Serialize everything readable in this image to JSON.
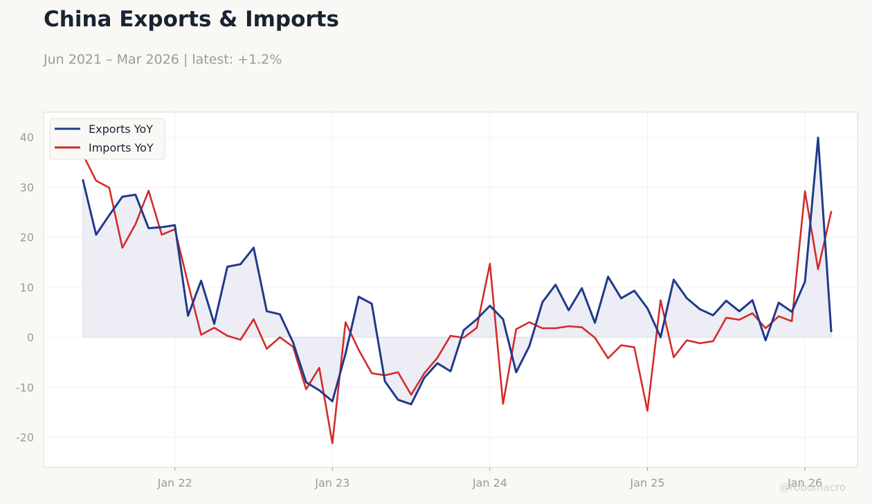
{
  "header": {
    "title": "China Exports & Imports",
    "subtitle": "Jun 2021 – Mar 2026 | latest: +1.2%"
  },
  "watermark": "@robomacro",
  "colors": {
    "exports": "#1f3a8a",
    "imports": "#d42a2a",
    "fill": "#e9eaf3",
    "grid": "#f0f0f0",
    "frame": "#dedad0"
  },
  "chart_data": {
    "type": "line",
    "x_start": "2021-06",
    "x_interval": "month",
    "xlim": [
      "2021-03",
      "2026-05"
    ],
    "ylim": [
      -26,
      45
    ],
    "x_ticks": [
      {
        "date": "2022-01",
        "label": "Jan 22"
      },
      {
        "date": "2023-01",
        "label": "Jan 23"
      },
      {
        "date": "2024-01",
        "label": "Jan 24"
      },
      {
        "date": "2025-01",
        "label": "Jan 25"
      },
      {
        "date": "2026-01",
        "label": "Jan 26"
      }
    ],
    "y_ticks": [
      -20,
      -10,
      0,
      10,
      20,
      30,
      40
    ],
    "y_tick_labels": [
      "-20",
      "-10",
      "0",
      "10",
      "20",
      "30",
      "40"
    ],
    "grid": true,
    "legend_position": "top-left",
    "area_fill_series": "Exports YoY",
    "series": [
      {
        "name": "Exports YoY",
        "values": [
          31.4,
          20.5,
          24.4,
          28.1,
          28.5,
          21.8,
          22.0,
          22.4,
          4.3,
          11.3,
          2.7,
          14.1,
          14.6,
          17.9,
          5.2,
          4.6,
          -1.0,
          -9.0,
          -10.6,
          -12.8,
          -3.3,
          8.1,
          6.7,
          -8.8,
          -12.5,
          -13.4,
          -8.1,
          -5.2,
          -6.8,
          1.4,
          3.6,
          6.3,
          3.6,
          -7.0,
          -1.8,
          7.0,
          10.5,
          5.4,
          9.8,
          2.9,
          12.1,
          7.8,
          9.3,
          5.8,
          0.0,
          11.5,
          7.8,
          5.6,
          4.4,
          7.3,
          5.2,
          7.4,
          -0.6,
          6.9,
          5.1,
          11.1,
          39.9,
          1.2
        ]
      },
      {
        "name": "Imports YoY",
        "values": [
          36.5,
          31.3,
          29.9,
          17.9,
          22.6,
          29.3,
          20.5,
          21.6,
          10.8,
          0.5,
          1.9,
          0.3,
          -0.5,
          3.6,
          -2.3,
          0.0,
          -1.9,
          -10.4,
          -6.1,
          -21.2,
          3.0,
          -2.5,
          -7.2,
          -7.6,
          -7.0,
          -11.5,
          -7.2,
          -4.1,
          0.3,
          -0.1,
          1.9,
          14.7,
          -13.3,
          1.6,
          3.0,
          1.8,
          1.8,
          2.2,
          2.0,
          -0.1,
          -4.2,
          -1.6,
          -2.0,
          -14.7,
          7.4,
          -4.0,
          -0.6,
          -1.2,
          -0.8,
          3.9,
          3.5,
          4.8,
          1.8,
          4.2,
          3.2,
          29.2,
          13.6,
          25.1
        ]
      }
    ]
  }
}
